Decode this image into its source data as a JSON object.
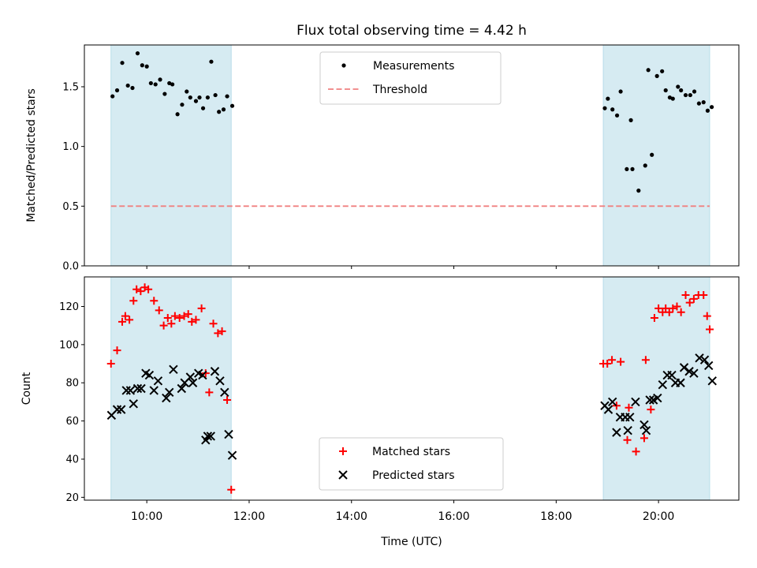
{
  "chart_data": [
    {
      "type": "scatter",
      "title": "Flux total observing time = 4.42 h",
      "xlabel": "",
      "ylabel": "Matched/Predicted stars",
      "xlim": [
        8.78,
        21.57
      ],
      "ylim": [
        0,
        1.85
      ],
      "yticks": [
        0.0,
        0.5,
        1.0,
        1.5
      ],
      "ytick_labels": [
        "0.0",
        "0.5",
        "1.0",
        "1.5"
      ],
      "shaded_intervals": [
        [
          9.3,
          11.65
        ],
        [
          18.92,
          21.0
        ]
      ],
      "legend": {
        "position": "top-center",
        "entries": [
          "Measurements",
          "Threshold"
        ]
      },
      "series": [
        {
          "name": "Measurements",
          "marker": "dot",
          "color": "#000000",
          "x": [
            9.33,
            9.42,
            9.52,
            9.63,
            9.72,
            9.82,
            9.91,
            10.0,
            10.08,
            10.17,
            10.26,
            10.35,
            10.44,
            10.5,
            10.6,
            10.69,
            10.78,
            10.85,
            10.96,
            11.03,
            11.1,
            11.19,
            11.26,
            11.34,
            11.41,
            11.5,
            11.57,
            11.67,
            18.95,
            19.01,
            19.1,
            19.19,
            19.26,
            19.38,
            19.46,
            19.49,
            19.61,
            19.74,
            19.8,
            19.87,
            19.97,
            20.07,
            20.14,
            20.22,
            20.28,
            20.38,
            20.44,
            20.53,
            20.62,
            20.7,
            20.79,
            20.88,
            20.96,
            21.04
          ],
          "y": [
            1.42,
            1.47,
            1.7,
            1.51,
            1.49,
            1.78,
            1.68,
            1.67,
            1.53,
            1.52,
            1.56,
            1.44,
            1.53,
            1.52,
            1.27,
            1.35,
            1.46,
            1.41,
            1.38,
            1.41,
            1.32,
            1.41,
            1.71,
            1.43,
            1.29,
            1.31,
            1.42,
            1.34,
            1.32,
            1.4,
            1.31,
            1.26,
            1.46,
            0.81,
            1.22,
            0.81,
            0.63,
            0.84,
            1.64,
            0.93,
            1.59,
            1.63,
            1.47,
            1.41,
            1.4,
            1.5,
            1.47,
            1.43,
            1.43,
            1.46,
            1.36,
            1.37,
            1.3,
            1.33
          ]
        },
        {
          "name": "Threshold",
          "style": "dashed",
          "color": "#f08080",
          "x": [
            9.3,
            21.0
          ],
          "y": [
            0.5,
            0.5
          ]
        }
      ]
    },
    {
      "type": "scatter",
      "title": "",
      "xlabel": "Time (UTC)",
      "ylabel": "Count",
      "xlim": [
        8.78,
        21.57
      ],
      "ylim": [
        18.5,
        135.5
      ],
      "yticks": [
        20,
        40,
        60,
        80,
        100,
        120
      ],
      "ytick_labels": [
        "20",
        "40",
        "60",
        "80",
        "100",
        "120"
      ],
      "xticks": [
        10,
        12,
        14,
        16,
        18,
        20
      ],
      "xtick_labels": [
        "10:00",
        "12:00",
        "14:00",
        "16:00",
        "18:00",
        "20:00"
      ],
      "shaded_intervals": [
        [
          9.3,
          11.65
        ],
        [
          18.92,
          21.0
        ]
      ],
      "legend": {
        "position": "bottom-center",
        "entries": [
          "Matched stars",
          "Predicted stars"
        ]
      },
      "series": [
        {
          "name": "Matched stars",
          "marker": "plus",
          "color": "#ff0000",
          "x": [
            9.3,
            9.42,
            9.52,
            9.58,
            9.66,
            9.74,
            9.8,
            9.88,
            9.96,
            10.03,
            10.14,
            10.24,
            10.33,
            10.41,
            10.48,
            10.55,
            10.64,
            10.73,
            10.81,
            10.88,
            10.96,
            11.07,
            11.15,
            11.22,
            11.3,
            11.39,
            11.47,
            11.57,
            11.65,
            18.92,
            19.0,
            19.09,
            19.18,
            19.26,
            19.39,
            19.42,
            19.56,
            19.72,
            19.75,
            19.85,
            19.92,
            20.0,
            20.08,
            20.14,
            20.21,
            20.28,
            20.36,
            20.44,
            20.53,
            20.61,
            20.69,
            20.78,
            20.88,
            20.95,
            21.0
          ],
          "y": [
            90,
            97,
            112,
            115,
            113,
            123,
            129,
            128,
            130,
            129,
            123,
            118,
            110,
            114,
            111,
            115,
            114,
            115,
            116,
            112,
            113,
            119,
            85,
            75,
            111,
            106,
            107,
            71,
            24,
            90,
            90,
            92,
            68,
            91,
            50,
            67,
            44,
            51,
            92,
            66,
            114,
            119,
            117,
            119,
            117,
            119,
            120,
            117,
            126,
            122,
            124,
            126,
            126,
            115,
            108
          ]
        },
        {
          "name": "Predicted stars",
          "marker": "x",
          "color": "#000000",
          "x": [
            9.31,
            9.42,
            9.5,
            9.6,
            9.68,
            9.74,
            9.82,
            9.89,
            9.98,
            10.05,
            10.14,
            10.22,
            10.38,
            10.44,
            10.52,
            10.68,
            10.74,
            10.85,
            10.9,
            11.01,
            11.09,
            11.15,
            11.19,
            11.25,
            11.33,
            11.43,
            11.52,
            11.6,
            11.67,
            18.95,
            19.02,
            19.1,
            19.18,
            19.25,
            19.35,
            19.4,
            19.44,
            19.55,
            19.72,
            19.76,
            19.83,
            19.9,
            19.98,
            20.08,
            20.17,
            20.26,
            20.33,
            20.43,
            20.5,
            20.6,
            20.69,
            20.8,
            20.9,
            20.98,
            21.05
          ],
          "y": [
            63,
            66,
            66,
            76,
            76,
            69,
            77,
            77,
            85,
            84,
            76,
            81,
            72,
            75,
            87,
            77,
            80,
            83,
            80,
            85,
            84,
            50,
            52,
            52,
            86,
            81,
            75,
            53,
            42,
            68,
            66,
            70,
            54,
            62,
            62,
            55,
            62,
            70,
            58,
            55,
            71,
            71,
            72,
            79,
            84,
            84,
            80,
            80,
            88,
            86,
            85,
            93,
            92,
            89,
            81
          ]
        }
      ]
    }
  ]
}
